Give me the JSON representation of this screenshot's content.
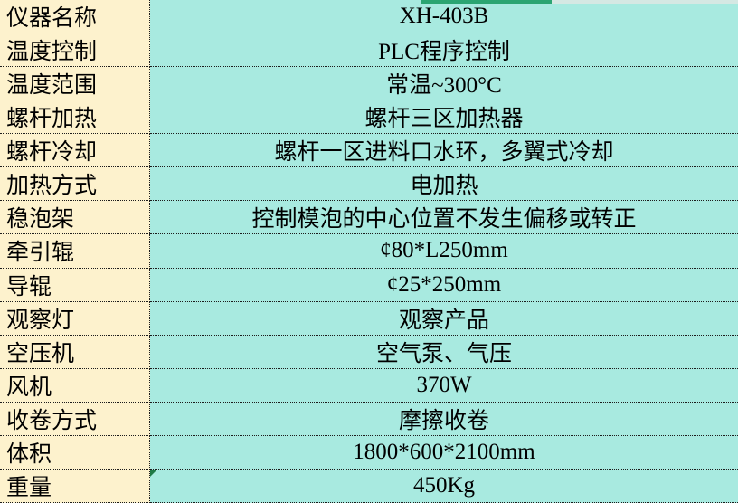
{
  "colors": {
    "label_bg": "#FDF2CD",
    "value_bg": "#A8EAE0",
    "border": "#1c1c1c",
    "green_strip": "#2BA572",
    "gray_strip": "#D5E8E3",
    "flag_green": "#1F7A46"
  },
  "table": {
    "rows": [
      {
        "label": "仪器名称",
        "value": "XH-403B"
      },
      {
        "label": "温度控制",
        "value": "PLC程序控制"
      },
      {
        "label": "温度范围",
        "value": "常温~300°C"
      },
      {
        "label": "螺杆加热",
        "value": "螺杆三区加热器"
      },
      {
        "label": "螺杆冷却",
        "value": "螺杆一区进料口水环，多翼式冷却"
      },
      {
        "label": "加热方式",
        "value": "电加热"
      },
      {
        "label": "稳泡架",
        "value": "控制模泡的中心位置不发生偏移或转正"
      },
      {
        "label": "牵引辊",
        "value": "¢80*L250mm"
      },
      {
        "label": "导辊",
        "value": "¢25*250mm"
      },
      {
        "label": "观察灯",
        "value": "观察产品"
      },
      {
        "label": "空压机",
        "value": "空气泵、气压"
      },
      {
        "label": "风机",
        "value": "370W"
      },
      {
        "label": "收卷方式",
        "value": "摩擦收卷"
      },
      {
        "label": "体积",
        "value": "1800*600*2100mm"
      },
      {
        "label": "重量",
        "value": "450Kg",
        "flag": true
      }
    ]
  }
}
